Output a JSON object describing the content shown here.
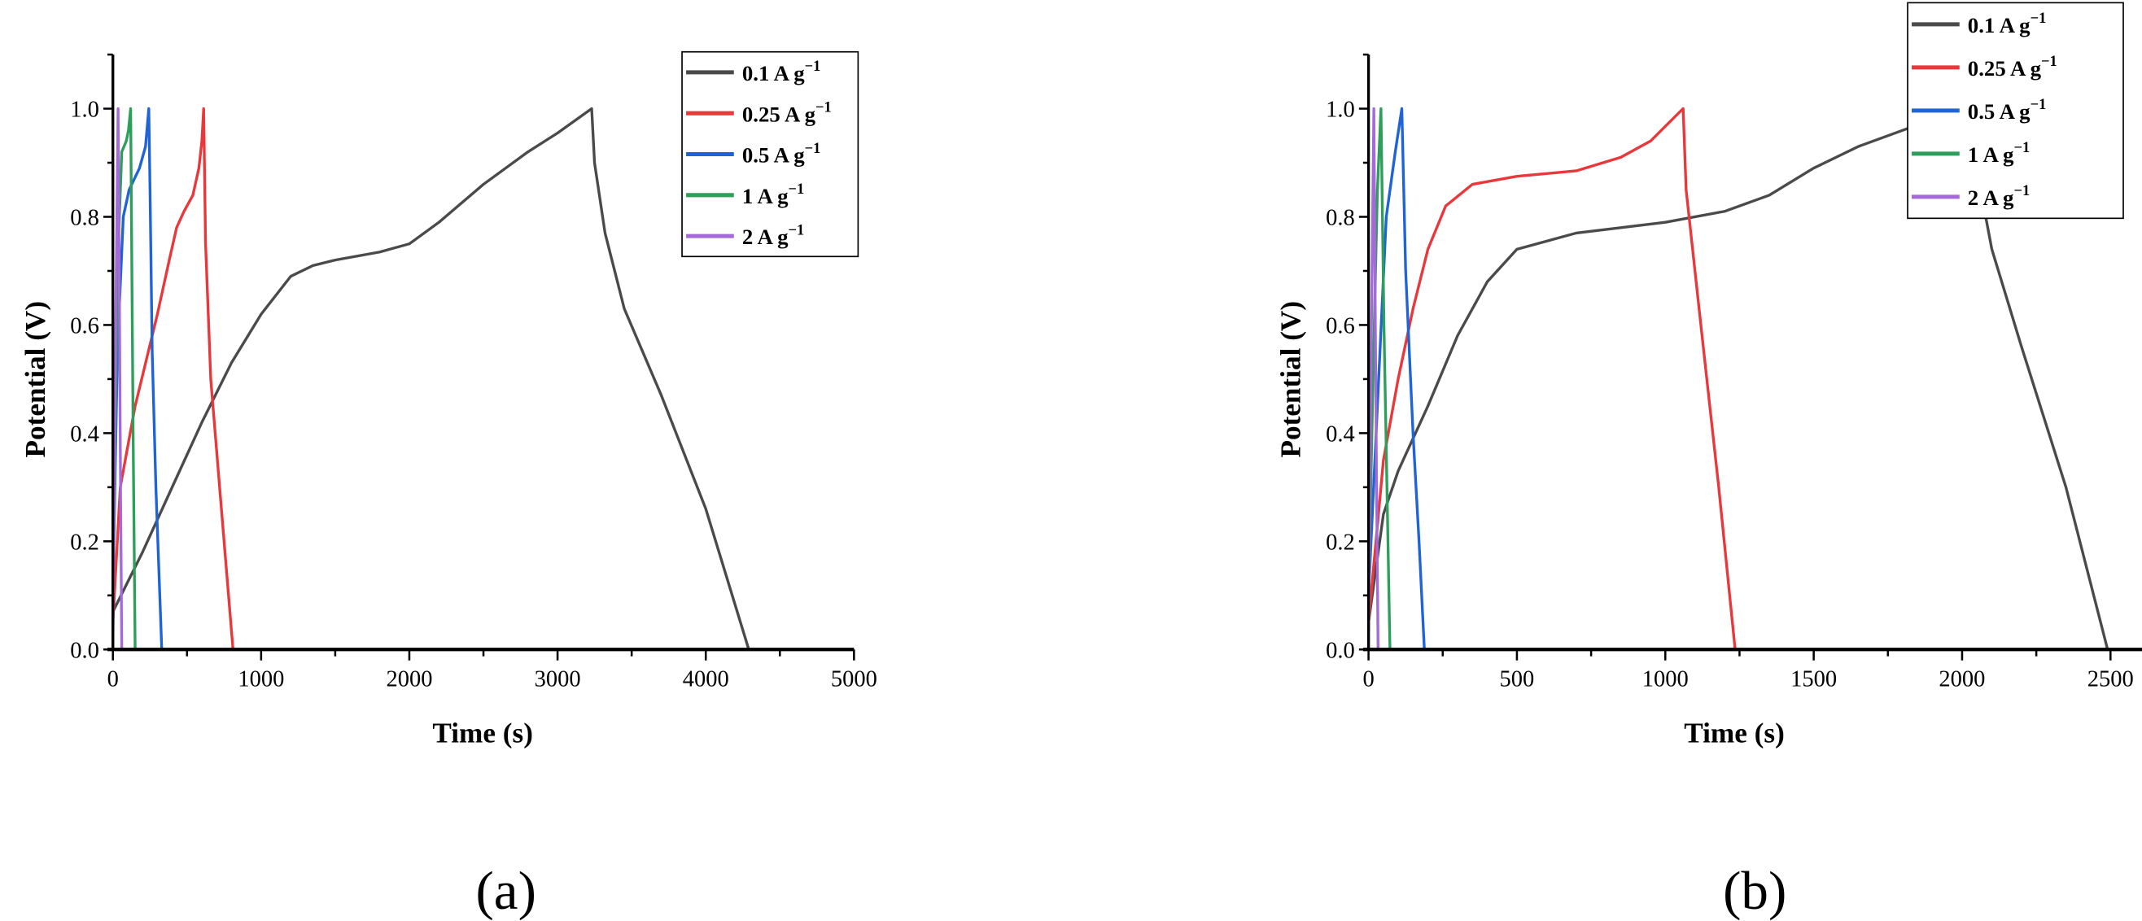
{
  "chart_data": [
    {
      "type": "line",
      "panel_label": "(a)",
      "xlabel": "Time (s)",
      "ylabel": "Potential (V)",
      "xlim": [
        0,
        5000
      ],
      "ylim": [
        0,
        1.1
      ],
      "xticks": [
        0,
        1000,
        2000,
        3000,
        4000,
        5000
      ],
      "yticks": [
        0.0,
        0.2,
        0.4,
        0.6,
        0.8,
        1.0
      ],
      "ytick_labels": [
        "0.0",
        "0.2",
        "0.4",
        "0.6",
        "0.8",
        "1.0"
      ],
      "legend_position": "top-right",
      "grid": false,
      "series": [
        {
          "name": "0.1 A g",
          "sup": "−1",
          "color": "#4a4a4a",
          "points": [
            [
              0,
              0.07
            ],
            [
              200,
              0.18
            ],
            [
              400,
              0.3
            ],
            [
              600,
              0.42
            ],
            [
              800,
              0.53
            ],
            [
              1000,
              0.62
            ],
            [
              1200,
              0.69
            ],
            [
              1350,
              0.71
            ],
            [
              1500,
              0.72
            ],
            [
              1800,
              0.735
            ],
            [
              2000,
              0.75
            ],
            [
              2200,
              0.79
            ],
            [
              2500,
              0.86
            ],
            [
              2800,
              0.92
            ],
            [
              3000,
              0.955
            ],
            [
              3230,
              1.0
            ],
            [
              3250,
              0.9
            ],
            [
              3320,
              0.77
            ],
            [
              3450,
              0.63
            ],
            [
              3700,
              0.47
            ],
            [
              4000,
              0.26
            ],
            [
              4290,
              0.0
            ]
          ]
        },
        {
          "name": "0.25 A g",
          "sup": "−1",
          "color": "#e8383b",
          "points": [
            [
              0,
              0.05
            ],
            [
              50,
              0.3
            ],
            [
              150,
              0.45
            ],
            [
              300,
              0.62
            ],
            [
              380,
              0.72
            ],
            [
              430,
              0.78
            ],
            [
              480,
              0.81
            ],
            [
              540,
              0.84
            ],
            [
              580,
              0.89
            ],
            [
              600,
              0.94
            ],
            [
              612,
              1.0
            ],
            [
              625,
              0.75
            ],
            [
              660,
              0.5
            ],
            [
              720,
              0.3
            ],
            [
              810,
              0.0
            ]
          ]
        },
        {
          "name": "0.5 A g",
          "sup": "−1",
          "color": "#1f63d6",
          "points": [
            [
              0,
              0.1
            ],
            [
              30,
              0.55
            ],
            [
              70,
              0.8
            ],
            [
              110,
              0.85
            ],
            [
              180,
              0.89
            ],
            [
              220,
              0.93
            ],
            [
              242,
              1.0
            ],
            [
              250,
              0.85
            ],
            [
              265,
              0.55
            ],
            [
              290,
              0.3
            ],
            [
              330,
              0.0
            ]
          ]
        },
        {
          "name": "1 A g",
          "sup": "−1",
          "color": "#2e9e5b",
          "points": [
            [
              0,
              0.1
            ],
            [
              30,
              0.7
            ],
            [
              60,
              0.92
            ],
            [
              90,
              0.94
            ],
            [
              105,
              0.96
            ],
            [
              120,
              1.0
            ],
            [
              128,
              0.7
            ],
            [
              138,
              0.35
            ],
            [
              150,
              0.0
            ]
          ]
        },
        {
          "name": "2 A g",
          "sup": "−1",
          "color": "#a36ad8",
          "points": [
            [
              0,
              0.0
            ],
            [
              15,
              0.5
            ],
            [
              35,
              1.0
            ],
            [
              45,
              0.6
            ],
            [
              52,
              0.3
            ],
            [
              60,
              0.0
            ]
          ]
        }
      ]
    },
    {
      "type": "line",
      "panel_label": "(b)",
      "xlabel": "Time (s)",
      "ylabel": "Potential (V)",
      "xlim": [
        0,
        2750
      ],
      "ylim": [
        0,
        1.1
      ],
      "xticks": [
        0,
        500,
        1000,
        1500,
        2000,
        2500
      ],
      "yticks": [
        0.0,
        0.2,
        0.4,
        0.6,
        0.8,
        1.0
      ],
      "ytick_labels": [
        "0.0",
        "0.2",
        "0.4",
        "0.6",
        "0.8",
        "1.0"
      ],
      "legend_position": "top-right",
      "grid": false,
      "series": [
        {
          "name": "0.1 A g",
          "sup": "−1",
          "color": "#4a4a4a",
          "points": [
            [
              0,
              0.05
            ],
            [
              50,
              0.25
            ],
            [
              100,
              0.33
            ],
            [
              200,
              0.45
            ],
            [
              300,
              0.58
            ],
            [
              400,
              0.68
            ],
            [
              500,
              0.74
            ],
            [
              700,
              0.77
            ],
            [
              1000,
              0.79
            ],
            [
              1200,
              0.81
            ],
            [
              1350,
              0.84
            ],
            [
              1500,
              0.89
            ],
            [
              1650,
              0.93
            ],
            [
              1850,
              0.97
            ],
            [
              2030,
              1.0
            ],
            [
              2045,
              0.9
            ],
            [
              2100,
              0.74
            ],
            [
              2200,
              0.56
            ],
            [
              2350,
              0.3
            ],
            [
              2490,
              0.0
            ]
          ]
        },
        {
          "name": "0.25 A g",
          "sup": "−1",
          "color": "#e8383b",
          "points": [
            [
              0,
              0.05
            ],
            [
              50,
              0.35
            ],
            [
              100,
              0.5
            ],
            [
              150,
              0.63
            ],
            [
              200,
              0.74
            ],
            [
              260,
              0.82
            ],
            [
              350,
              0.86
            ],
            [
              500,
              0.875
            ],
            [
              700,
              0.885
            ],
            [
              850,
              0.91
            ],
            [
              950,
              0.94
            ],
            [
              1060,
              1.0
            ],
            [
              1070,
              0.85
            ],
            [
              1120,
              0.6
            ],
            [
              1180,
              0.3
            ],
            [
              1235,
              0.0
            ]
          ]
        },
        {
          "name": "0.5 A g",
          "sup": "−1",
          "color": "#1f63d6",
          "points": [
            [
              0,
              0.1
            ],
            [
              30,
              0.45
            ],
            [
              60,
              0.8
            ],
            [
              90,
              0.92
            ],
            [
              112,
              1.0
            ],
            [
              125,
              0.7
            ],
            [
              150,
              0.4
            ],
            [
              170,
              0.2
            ],
            [
              188,
              0.0
            ]
          ]
        },
        {
          "name": "1 A g",
          "sup": "−1",
          "color": "#2e9e5b",
          "points": [
            [
              0,
              0.1
            ],
            [
              15,
              0.5
            ],
            [
              30,
              0.85
            ],
            [
              42,
              1.0
            ],
            [
              52,
              0.6
            ],
            [
              62,
              0.3
            ],
            [
              72,
              0.0
            ]
          ]
        },
        {
          "name": "2 A g",
          "sup": "−1",
          "color": "#a36ad8",
          "points": [
            [
              0,
              0.0
            ],
            [
              8,
              0.5
            ],
            [
              18,
              1.0
            ],
            [
              23,
              0.6
            ],
            [
              27,
              0.3
            ],
            [
              32,
              0.0
            ]
          ]
        }
      ]
    }
  ]
}
